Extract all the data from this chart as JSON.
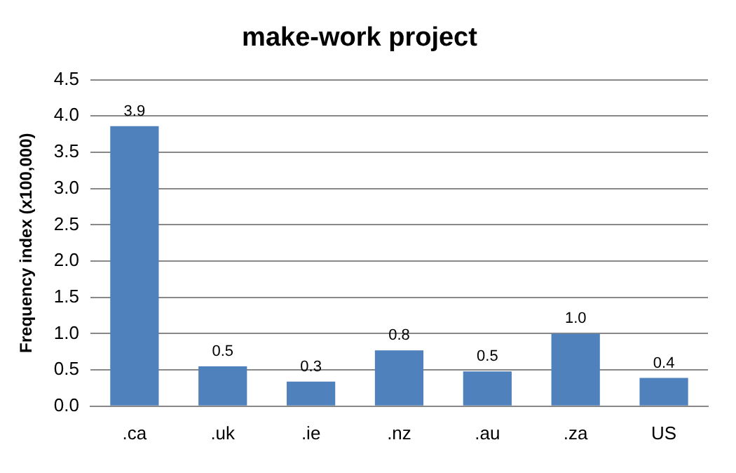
{
  "chart_data": {
    "type": "bar",
    "title": "make-work project",
    "ylabel": "Frequency index (x100,000)",
    "categories": [
      ".ca",
      ".uk",
      ".ie",
      ".nz",
      ".au",
      ".za",
      "US"
    ],
    "values": [
      3.86,
      0.55,
      0.34,
      0.77,
      0.48,
      1.0,
      0.39
    ],
    "value_labels": [
      "3.9",
      "0.5",
      "0.3",
      "0.8",
      "0.5",
      "1.0",
      "0.4"
    ],
    "color": "#4f81bd",
    "ylim": [
      0,
      4.5
    ],
    "yticks": [
      {
        "value": 0,
        "label": "0.0"
      },
      {
        "value": 0.5,
        "label": "0.5"
      },
      {
        "value": 1,
        "label": "1.0"
      },
      {
        "value": 1.5,
        "label": "1.5"
      },
      {
        "value": 2,
        "label": "2.0"
      },
      {
        "value": 2.5,
        "label": "2.5"
      },
      {
        "value": 3,
        "label": "3.0"
      },
      {
        "value": 3.5,
        "label": "3.5"
      },
      {
        "value": 4,
        "label": "4.0"
      },
      {
        "value": 4.5,
        "label": "4.5"
      }
    ],
    "grid": "y"
  }
}
